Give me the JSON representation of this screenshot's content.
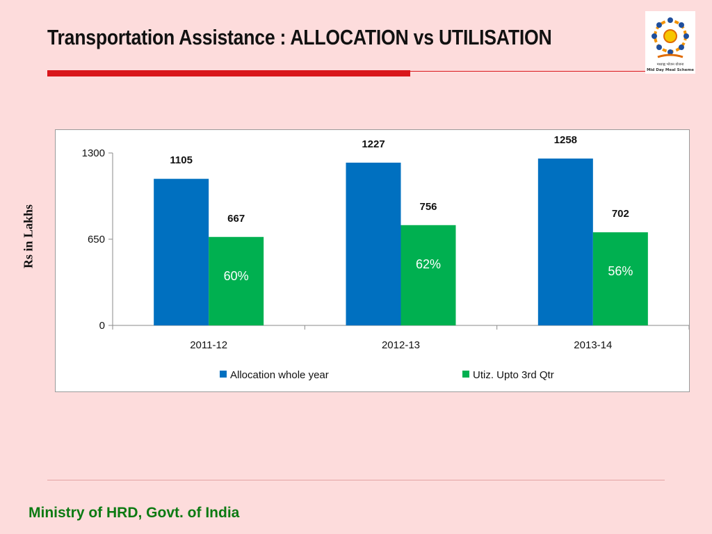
{
  "slide": {
    "title": "Transportation Assistance : ALLOCATION vs UTILISATION",
    "footer": "Ministry of HRD, Govt. of India",
    "logo_text": "मध्याह्न भोजन योजना",
    "logo_caption": "Mid Day Meal Scheme"
  },
  "chart_data": {
    "type": "bar",
    "title": "",
    "xlabel": "",
    "ylabel": "Rs in Lakhs",
    "categories": [
      "2011-12",
      "2012-13",
      "2013-14"
    ],
    "series": [
      {
        "name": "Allocation whole year",
        "values": [
          1105,
          1227,
          1258
        ],
        "color": "#0070c0"
      },
      {
        "name": "Utiz. Upto 3rd Qtr",
        "values": [
          667,
          756,
          702
        ],
        "color": "#00b050"
      }
    ],
    "percent_labels": [
      "60%",
      "62%",
      "56%"
    ],
    "percent_label_color": "#ffffff",
    "y_ticks": [
      0,
      650,
      1300
    ],
    "ylim": [
      0,
      1300
    ],
    "grid": false,
    "legend": "bottom"
  }
}
